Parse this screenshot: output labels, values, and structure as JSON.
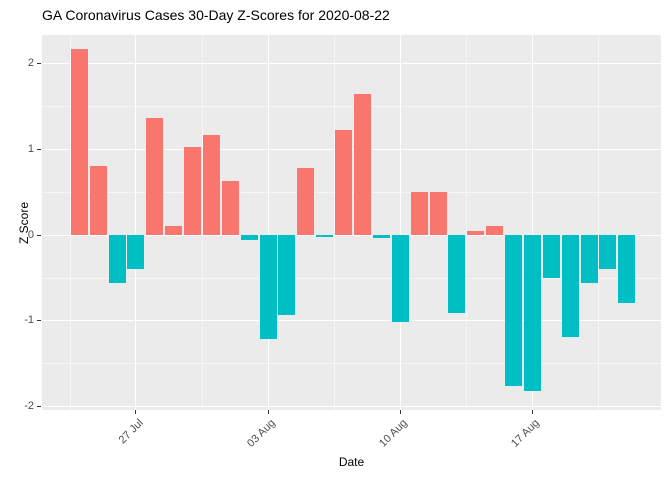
{
  "title": "GA Coronavirus Cases 30-Day Z-Scores for 2020-08-22",
  "colors": {
    "positive_bar": "#F8766D",
    "negative_bar": "#00BFC4",
    "panel_background": "#EBEBEB",
    "gridline": "#FFFFFF",
    "tick_label": "#4D4D4D",
    "title_text": "#000000"
  },
  "chart_data": {
    "type": "bar",
    "title": "GA Coronavirus Cases 30-Day Z-Scores for 2020-08-22",
    "xlabel": "Date",
    "ylabel": "Z Score",
    "ylim": [
      -2.19,
      2.33
    ],
    "grid": true,
    "legend": "none",
    "color_rule": "positive values salmon-red, negative values teal",
    "x": [
      "2020-07-24",
      "2020-07-25",
      "2020-07-26",
      "2020-07-27",
      "2020-07-28",
      "2020-07-29",
      "2020-07-30",
      "2020-07-31",
      "2020-08-01",
      "2020-08-02",
      "2020-08-03",
      "2020-08-04",
      "2020-08-05",
      "2020-08-06",
      "2020-08-07",
      "2020-08-08",
      "2020-08-09",
      "2020-08-10",
      "2020-08-11",
      "2020-08-12",
      "2020-08-13",
      "2020-08-14",
      "2020-08-15",
      "2020-08-16",
      "2020-08-17",
      "2020-08-18",
      "2020-08-19",
      "2020-08-20",
      "2020-08-21",
      "2020-08-22"
    ],
    "values": [
      2.17,
      0.81,
      -0.56,
      -0.4,
      1.36,
      0.11,
      1.03,
      1.17,
      0.63,
      -0.06,
      -1.21,
      -0.93,
      0.78,
      -0.02,
      1.23,
      1.65,
      -0.04,
      -1.01,
      0.5,
      0.5,
      -0.91,
      0.05,
      0.11,
      -1.76,
      -1.82,
      -0.5,
      -1.19,
      -0.56,
      -0.4,
      -0.79
    ],
    "x_tick_labels": [
      "27 Jul",
      "03 Aug",
      "10 Aug",
      "17 Aug"
    ],
    "x_tick_indices": [
      3,
      10,
      17,
      24
    ],
    "y_major_ticks": [
      -2,
      -1,
      0,
      1,
      2
    ],
    "y_tick_labels": [
      "-2",
      "-1",
      "0",
      "1",
      "2"
    ],
    "y_minor_ticks": [
      -1.5,
      -0.5,
      0.5,
      1.5
    ]
  }
}
